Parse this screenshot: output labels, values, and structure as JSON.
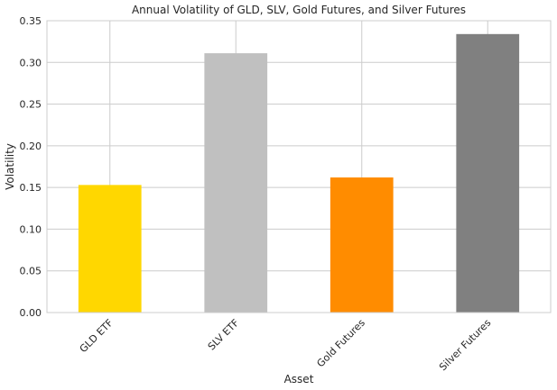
{
  "chart_data": {
    "type": "bar",
    "title": "Annual Volatility of GLD, SLV, Gold Futures, and Silver Futures",
    "xlabel": "Asset",
    "ylabel": "Volatility",
    "categories": [
      "GLD ETF",
      "SLV ETF",
      "Gold Futures",
      "Silver Futures"
    ],
    "values": [
      0.153,
      0.311,
      0.162,
      0.334
    ],
    "colors": [
      "#ffd700",
      "#c0c0c0",
      "#ff8c00",
      "#808080"
    ],
    "ylim": [
      0,
      0.35
    ],
    "yticks": [
      "0.00",
      "0.05",
      "0.10",
      "0.15",
      "0.20",
      "0.25",
      "0.30",
      "0.35"
    ],
    "ytick_values": [
      0,
      0.05,
      0.1,
      0.15,
      0.2,
      0.25,
      0.3,
      0.35
    ],
    "grid": true,
    "x_tick_rotation_deg": 45,
    "legend": false
  }
}
